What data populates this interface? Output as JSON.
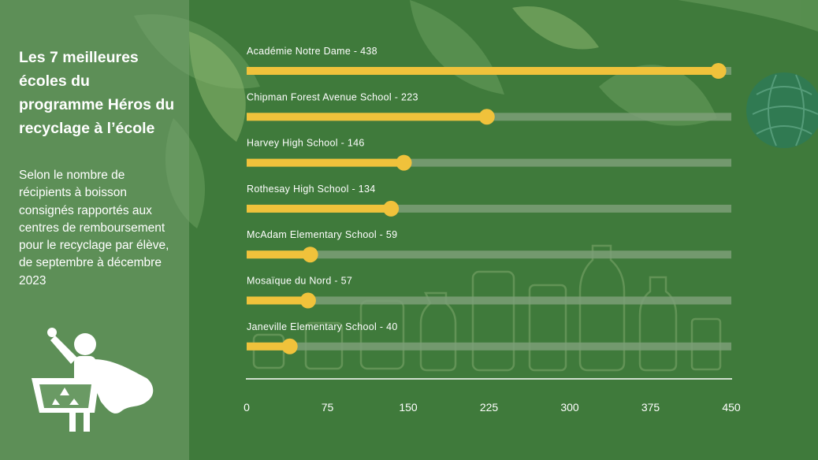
{
  "panel": {
    "title": "Les 7 meilleures écoles du programme Héros du recyclage à l’école",
    "subtitle": "Selon le nombre de récipients à boisson consignés rapportés aux centres de remboursement pour le recyclage par élève, de septembre à décembre 2023",
    "icon": "recycling-hero-icon"
  },
  "colors": {
    "background": "#3f7a3b",
    "bar": "#f0c23b",
    "track": "#7d9f78",
    "panel": "#76a070"
  },
  "chart_data": {
    "type": "bar",
    "orientation": "horizontal",
    "categories": [
      "Académie Notre Dame",
      "Chipman Forest Avenue School",
      "Harvey High School",
      "Rothesay High School",
      "McAdam Elementary School",
      "Mosaïque du Nord",
      "Janeville Elementary School"
    ],
    "labels": [
      "Académie Notre Dame - 438",
      "Chipman Forest Avenue School - 223",
      "Harvey High School - 146",
      "Rothesay High School - 134",
      "McAdam Elementary School - 59",
      "Mosaïque du Nord - 57",
      "Janeville Elementary School - 40"
    ],
    "values": [
      438,
      223,
      146,
      134,
      59,
      57,
      40
    ],
    "xlim": [
      0,
      450
    ],
    "xticks": [
      "0",
      "75",
      "150",
      "225",
      "300",
      "375",
      "450"
    ],
    "grid": false,
    "legend": "none"
  }
}
